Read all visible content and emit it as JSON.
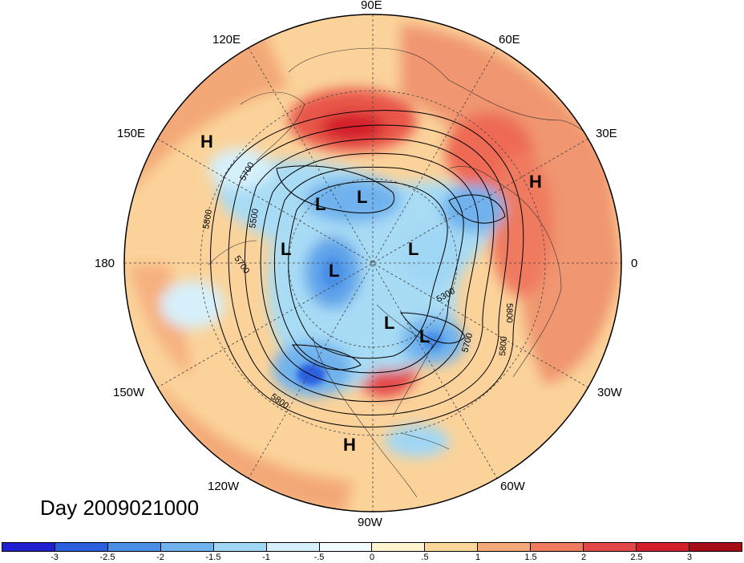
{
  "title": "Day 2009021000",
  "longitude_labels": {
    "lon_90e": "90E",
    "lon_120e": "120E",
    "lon_60e": "60E",
    "lon_150e": "150E",
    "lon_30e": "30E",
    "lon_180": "180",
    "lon_0": "0",
    "lon_150w": "150W",
    "lon_30w": "30W",
    "lon_120w": "120W",
    "lon_60w": "60W",
    "lon_90w": "90W"
  },
  "pressure_centers": {
    "high": "H",
    "low": "L"
  },
  "contour_labels": {
    "c5800_a": "5800",
    "c5700_a": "5700",
    "c5500": "5500",
    "c5700_b": "5700",
    "c5300": "5300",
    "c5800_b": "5800",
    "c5700_c": "5700",
    "c5800_c": "5800",
    "c5800_d": "5800"
  },
  "colorbar": {
    "ticks": [
      "-3",
      "-2.5",
      "-2",
      "-1.5",
      "-1",
      "-.5",
      "0",
      ".5",
      "1",
      "1.5",
      "2",
      "2.5",
      "3"
    ],
    "colors": [
      "#1f1fd0",
      "#2a60e0",
      "#4a8fe6",
      "#6fb2ee",
      "#a0d7f5",
      "#d6f0fb",
      "#f2fbff",
      "#fff4d0",
      "#fbd79a",
      "#f5a877",
      "#ef7a5e",
      "#e44747",
      "#d31e2b",
      "#a50f15"
    ]
  }
}
